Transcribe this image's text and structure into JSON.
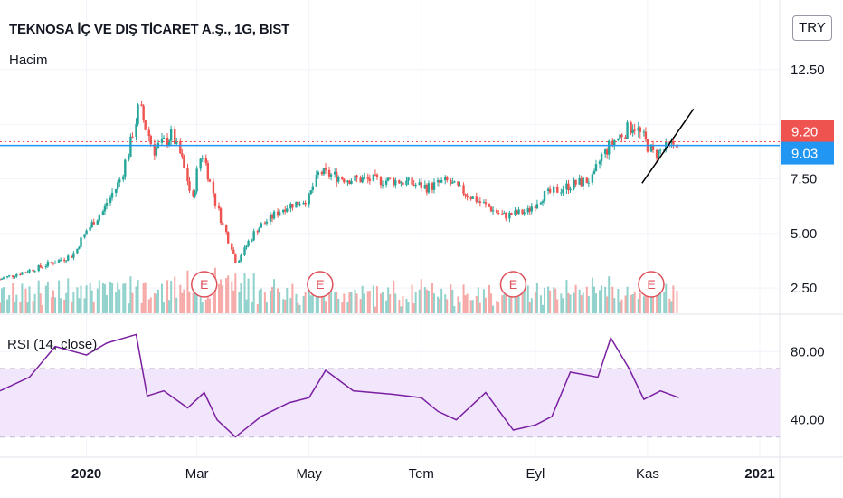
{
  "header": {
    "symbol_title": "TEKNOSA İÇ VE DIŞ TİCARET A.Ş., 1G, BIST",
    "volume_label": "Hacim",
    "currency_button": "TRY"
  },
  "rsi_panel": {
    "label": "RSI (14, close)"
  },
  "colors": {
    "up": "#26a69a",
    "down": "#ef5350",
    "rsi_line": "#7b1fa2",
    "rsi_band_fill": "#f1e6fb",
    "hline": "#2196f3",
    "last_price_tag": "#ef5350",
    "level_tag": "#2196f3",
    "earnings": "#e0505a"
  },
  "chart_data": [
    {
      "type": "candlestick",
      "title": "TEKNOSA İÇ VE DIŞ TİCARET A.Ş., 1G, BIST",
      "y_axis_ticks": [
        "12.50",
        "10.00",
        "7.50",
        "5.00",
        "2.50"
      ],
      "ylim": [
        1.8,
        13.2
      ],
      "x_axis_labels": [
        "2020",
        "Mar",
        "May",
        "Tem",
        "Eyl",
        "Kas",
        "2021"
      ],
      "price_path": [
        [
          "2019-11-15",
          2.9
        ],
        [
          "2019-12-05",
          3.4
        ],
        [
          "2019-12-25",
          4.0
        ],
        [
          "2020-01-02",
          5.2
        ],
        [
          "2020-01-10",
          6.0
        ],
        [
          "2020-01-20",
          7.5
        ],
        [
          "2020-01-25",
          9.0
        ],
        [
          "2020-01-30",
          10.8
        ],
        [
          "2020-02-07",
          8.8
        ],
        [
          "2020-02-17",
          9.5
        ],
        [
          "2020-02-23",
          8.2
        ],
        [
          "2020-02-28",
          6.5
        ],
        [
          "2020-03-04",
          8.8
        ],
        [
          "2020-03-13",
          6.0
        ],
        [
          "2020-03-23",
          3.7
        ],
        [
          "2020-04-03",
          5.2
        ],
        [
          "2020-04-18",
          6.2
        ],
        [
          "2020-05-01",
          6.6
        ],
        [
          "2020-05-07",
          7.8
        ],
        [
          "2020-05-22",
          7.5
        ],
        [
          "2020-06-20",
          7.4
        ],
        [
          "2020-07-05",
          7.1
        ],
        [
          "2020-07-15",
          7.4
        ],
        [
          "2020-07-30",
          6.6
        ],
        [
          "2020-08-15",
          5.8
        ],
        [
          "2020-08-28",
          6.0
        ],
        [
          "2020-09-05",
          6.7
        ],
        [
          "2020-09-20",
          7.2
        ],
        [
          "2020-10-03",
          7.5
        ],
        [
          "2020-10-07",
          8.5
        ],
        [
          "2020-10-15",
          9.3
        ],
        [
          "2020-10-25",
          10.0
        ],
        [
          "2020-11-05",
          8.6
        ],
        [
          "2020-11-18",
          9.2
        ]
      ],
      "last_price": 9.2,
      "horizontal_level": 9.03,
      "trend_line": [
        [
          "2020-10-29",
          7.3
        ],
        [
          "2020-11-26",
          10.7
        ]
      ],
      "earnings_markers": [
        "2020-03-05",
        "2020-05-07",
        "2020-08-20",
        "2020-11-03"
      ],
      "earnings_label": "E",
      "series": [
        {
          "name": "Hacim",
          "kind": "volume"
        }
      ]
    },
    {
      "type": "line",
      "title": "RSI (14, close)",
      "y_axis_ticks": [
        "80.00",
        "40.00"
      ],
      "ylim": [
        25,
        95
      ],
      "band": [
        30,
        70
      ],
      "x": [
        "2019-11-15",
        "2019-12-01",
        "2019-12-15",
        "2020-01-01",
        "2020-01-12",
        "2020-01-28",
        "2020-02-03",
        "2020-02-12",
        "2020-02-25",
        "2020-03-05",
        "2020-03-12",
        "2020-03-22",
        "2020-04-05",
        "2020-04-20",
        "2020-05-01",
        "2020-05-10",
        "2020-05-25",
        "2020-06-15",
        "2020-07-01",
        "2020-07-10",
        "2020-07-20",
        "2020-08-05",
        "2020-08-20",
        "2020-09-01",
        "2020-09-10",
        "2020-09-20",
        "2020-10-05",
        "2020-10-12",
        "2020-10-22",
        "2020-10-30",
        "2020-11-08",
        "2020-11-18"
      ],
      "values": [
        57,
        65,
        83,
        78,
        85,
        90,
        54,
        57,
        47,
        56,
        40,
        30,
        42,
        50,
        53,
        69,
        57,
        55,
        53,
        45,
        40,
        56,
        34,
        37,
        42,
        68,
        65,
        88,
        70,
        52,
        57,
        53
      ]
    }
  ]
}
